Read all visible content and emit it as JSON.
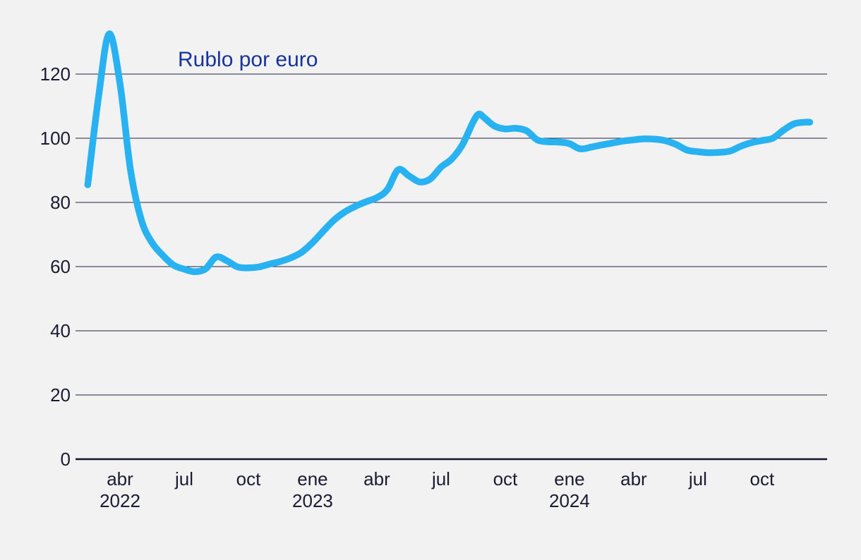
{
  "chart_data": {
    "type": "line",
    "title": "Rublo por euro",
    "xlabel": "",
    "ylabel": "",
    "ylim": [
      0,
      140
    ],
    "grid": true,
    "legend": "none",
    "y_ticks": [
      0,
      20,
      40,
      60,
      80,
      100,
      120
    ],
    "x_ticks": [
      {
        "label": "abr",
        "year": "2022"
      },
      {
        "label": "jul",
        "year": ""
      },
      {
        "label": "oct",
        "year": ""
      },
      {
        "label": "ene",
        "year": "2023"
      },
      {
        "label": "abr",
        "year": ""
      },
      {
        "label": "jul",
        "year": ""
      },
      {
        "label": "oct",
        "year": ""
      },
      {
        "label": "ene",
        "year": "2024"
      },
      {
        "label": "abr",
        "year": ""
      },
      {
        "label": "jul",
        "year": ""
      },
      {
        "label": "oct",
        "year": ""
      }
    ],
    "series": [
      {
        "name": "Rublo por euro",
        "points": [
          [
            "2022-02-16",
            85.5
          ],
          [
            "2022-03-01",
            113.0
          ],
          [
            "2022-03-16",
            132.5
          ],
          [
            "2022-04-01",
            117.0
          ],
          [
            "2022-04-16",
            90.0
          ],
          [
            "2022-05-01",
            74.5
          ],
          [
            "2022-05-16",
            67.5
          ],
          [
            "2022-06-01",
            63.5
          ],
          [
            "2022-06-16",
            60.5
          ],
          [
            "2022-07-01",
            59.2
          ],
          [
            "2022-07-16",
            58.4
          ],
          [
            "2022-08-01",
            59.3
          ],
          [
            "2022-08-16",
            63.0
          ],
          [
            "2022-09-01",
            61.8
          ],
          [
            "2022-09-16",
            59.9
          ],
          [
            "2022-10-01",
            59.6
          ],
          [
            "2022-10-16",
            59.9
          ],
          [
            "2022-11-01",
            60.8
          ],
          [
            "2022-11-16",
            61.6
          ],
          [
            "2022-12-01",
            62.8
          ],
          [
            "2022-12-16",
            64.5
          ],
          [
            "2023-01-01",
            67.5
          ],
          [
            "2023-01-16",
            71.0
          ],
          [
            "2023-02-01",
            74.5
          ],
          [
            "2023-02-16",
            77.0
          ],
          [
            "2023-03-01",
            78.8
          ],
          [
            "2023-03-16",
            80.2
          ],
          [
            "2023-04-01",
            81.5
          ],
          [
            "2023-04-16",
            84.0
          ],
          [
            "2023-05-01",
            90.2
          ],
          [
            "2023-05-16",
            88.3
          ],
          [
            "2023-06-01",
            86.4
          ],
          [
            "2023-06-16",
            87.3
          ],
          [
            "2023-07-01",
            91.0
          ],
          [
            "2023-07-16",
            93.5
          ],
          [
            "2023-08-01",
            98.0
          ],
          [
            "2023-08-16",
            105.0
          ],
          [
            "2023-08-24",
            107.5
          ],
          [
            "2023-09-01",
            106.5
          ],
          [
            "2023-09-16",
            103.8
          ],
          [
            "2023-10-01",
            102.9
          ],
          [
            "2023-10-16",
            103.1
          ],
          [
            "2023-11-01",
            102.3
          ],
          [
            "2023-11-16",
            99.5
          ],
          [
            "2023-12-01",
            98.9
          ],
          [
            "2023-12-16",
            98.8
          ],
          [
            "2024-01-01",
            98.3
          ],
          [
            "2024-01-16",
            96.7
          ],
          [
            "2024-02-01",
            97.2
          ],
          [
            "2024-02-16",
            97.9
          ],
          [
            "2024-03-01",
            98.5
          ],
          [
            "2024-03-16",
            99.1
          ],
          [
            "2024-04-01",
            99.5
          ],
          [
            "2024-04-16",
            99.8
          ],
          [
            "2024-05-01",
            99.7
          ],
          [
            "2024-05-16",
            99.2
          ],
          [
            "2024-06-01",
            98.0
          ],
          [
            "2024-06-16",
            96.3
          ],
          [
            "2024-07-01",
            95.8
          ],
          [
            "2024-07-16",
            95.5
          ],
          [
            "2024-08-01",
            95.6
          ],
          [
            "2024-08-16",
            96.0
          ],
          [
            "2024-09-01",
            97.5
          ],
          [
            "2024-09-16",
            98.6
          ],
          [
            "2024-10-01",
            99.3
          ],
          [
            "2024-10-16",
            100.0
          ],
          [
            "2024-11-01",
            102.5
          ],
          [
            "2024-11-16",
            104.5
          ],
          [
            "2024-12-01",
            105.0
          ],
          [
            "2024-12-08",
            105.0
          ]
        ]
      }
    ],
    "colors": {
      "background": "#f2f2f2",
      "line": "#28b2f2",
      "title": "#17339c",
      "axis_text": "#1b1b33",
      "gridline": "#22223e",
      "axis_line": "#13132e"
    }
  }
}
